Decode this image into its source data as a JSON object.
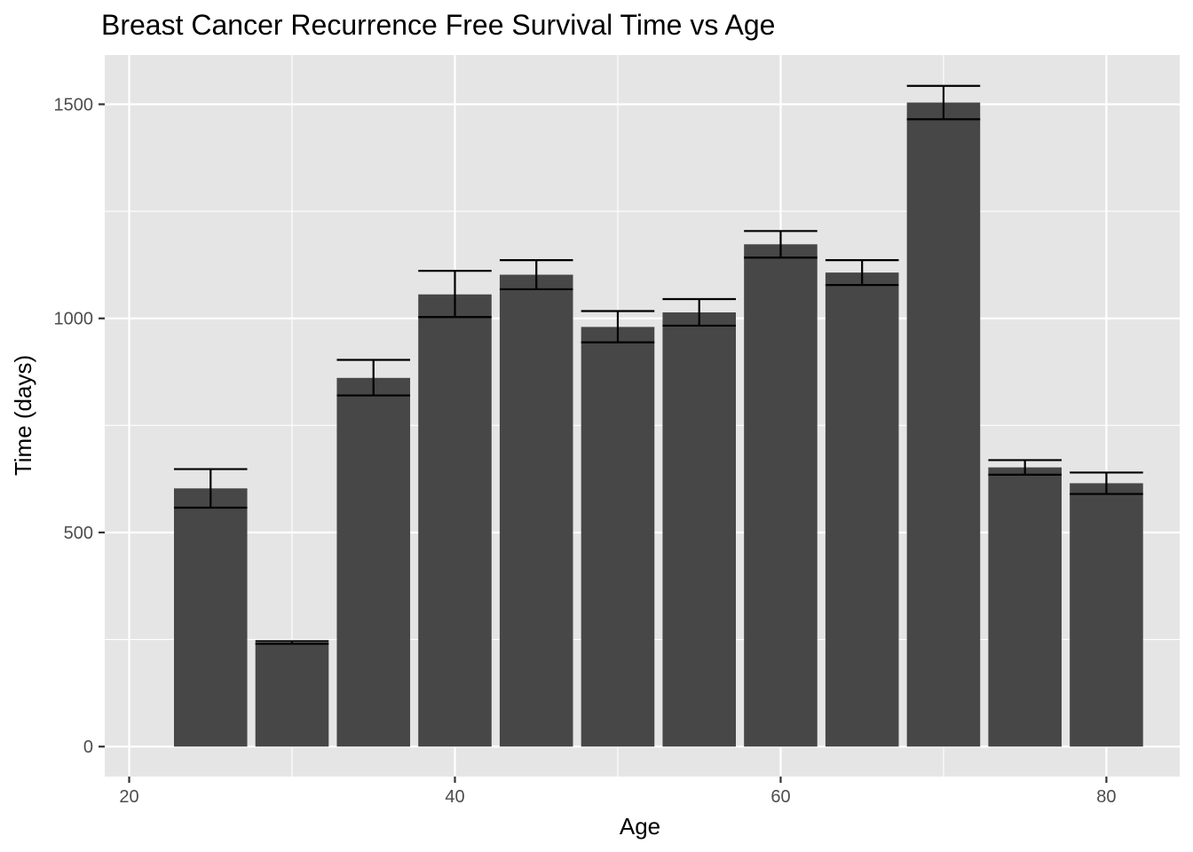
{
  "chart_data": {
    "type": "bar",
    "title": "Breast Cancer Recurrence Free Survival Time vs Age",
    "xlabel": "Age",
    "ylabel": "Time (days)",
    "xlim": [
      18.5,
      84.5
    ],
    "ylim": [
      -70,
      1615
    ],
    "x_ticks": [
      20,
      40,
      60,
      80
    ],
    "y_ticks": [
      0,
      500,
      1000,
      1500
    ],
    "bar_width": 4.5,
    "grid": true,
    "legend": "none",
    "colors": {
      "bar": "#474747",
      "panel": "#e5e5e5",
      "grid": "#ffffff",
      "errorbar": "#000000"
    },
    "x": [
      25,
      30,
      35,
      40,
      45,
      50,
      55,
      60,
      65,
      70,
      75,
      80
    ],
    "values": [
      603,
      243,
      861,
      1056,
      1102,
      980,
      1014,
      1173,
      1107,
      1504,
      652,
      615
    ],
    "error_low": [
      558,
      240,
      820,
      1003,
      1068,
      944,
      983,
      1142,
      1078,
      1465,
      635,
      590
    ],
    "error_high": [
      648,
      246,
      903,
      1111,
      1136,
      1017,
      1045,
      1204,
      1136,
      1543,
      669,
      640
    ]
  }
}
